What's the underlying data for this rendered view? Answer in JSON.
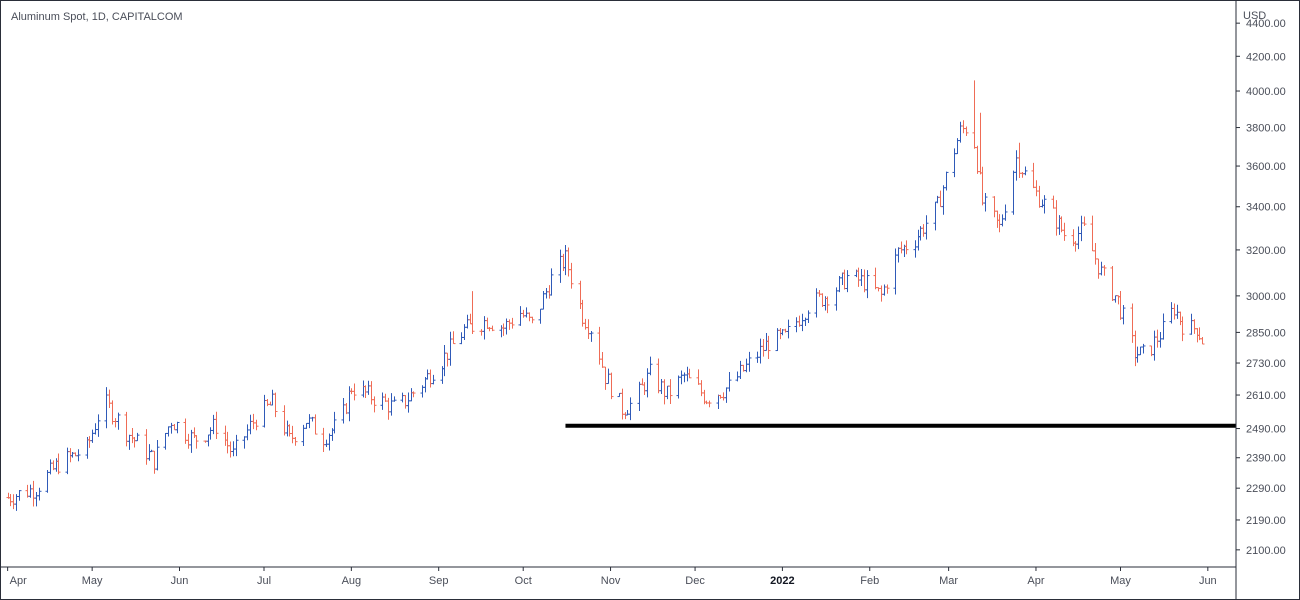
{
  "title": "Aluminum Spot, 1D, CAPITALCOM",
  "currency": "USD",
  "colors": {
    "up": "#2f5ab8",
    "down": "#ef6c56",
    "axis": "#2a2e39",
    "support_line": "#000000",
    "text": "#4a4e59"
  },
  "chart_data": {
    "type": "ohlc",
    "title": "Aluminum Spot, 1D, CAPITALCOM",
    "y_scale": "log",
    "ylim": [
      2050,
      4520
    ],
    "y_ticks": [
      "4400.00",
      "4200.00",
      "4000.00",
      "3800.00",
      "3600.00",
      "3400.00",
      "3200.00",
      "3000.00",
      "2850.00",
      "2730.00",
      "2610.00",
      "2490.00",
      "2390.00",
      "2290.00",
      "2190.00",
      "2100.00"
    ],
    "x_ticks": [
      {
        "label": "Apr",
        "day": 0,
        "bold": false
      },
      {
        "label": "May",
        "day": 30,
        "bold": false
      },
      {
        "label": "Jun",
        "day": 61,
        "bold": false
      },
      {
        "label": "Jul",
        "day": 91,
        "bold": false
      },
      {
        "label": "Aug",
        "day": 122,
        "bold": false
      },
      {
        "label": "Sep",
        "day": 153,
        "bold": false
      },
      {
        "label": "Oct",
        "day": 183,
        "bold": false
      },
      {
        "label": "Nov",
        "day": 214,
        "bold": false
      },
      {
        "label": "Dec",
        "day": 244,
        "bold": false
      },
      {
        "label": "2022",
        "day": 275,
        "bold": true
      },
      {
        "label": "Feb",
        "day": 306,
        "bold": false
      },
      {
        "label": "Mar",
        "day": 334,
        "bold": false
      },
      {
        "label": "Apr",
        "day": 365,
        "bold": false
      },
      {
        "label": "May",
        "day": 395,
        "bold": false
      },
      {
        "label": "Jun",
        "day": 426,
        "bold": false
      }
    ],
    "xlim_days": [
      -2,
      436
    ],
    "support_level": {
      "price": 2500,
      "from_day": 198,
      "to_day": 436
    },
    "anchors": [
      {
        "day": 0,
        "price": 2260
      },
      {
        "day": 10,
        "price": 2290
      },
      {
        "day": 18,
        "price": 2370
      },
      {
        "day": 28,
        "price": 2420
      },
      {
        "day": 34,
        "price": 2590
      },
      {
        "day": 42,
        "price": 2480
      },
      {
        "day": 52,
        "price": 2380
      },
      {
        "day": 58,
        "price": 2520
      },
      {
        "day": 66,
        "price": 2450
      },
      {
        "day": 74,
        "price": 2500
      },
      {
        "day": 80,
        "price": 2400
      },
      {
        "day": 88,
        "price": 2530
      },
      {
        "day": 94,
        "price": 2580
      },
      {
        "day": 100,
        "price": 2450
      },
      {
        "day": 106,
        "price": 2520
      },
      {
        "day": 112,
        "price": 2460
      },
      {
        "day": 118,
        "price": 2510
      },
      {
        "day": 122,
        "price": 2640
      },
      {
        "day": 130,
        "price": 2600
      },
      {
        "day": 138,
        "price": 2560
      },
      {
        "day": 146,
        "price": 2640
      },
      {
        "day": 154,
        "price": 2740
      },
      {
        "day": 162,
        "price": 2860
      },
      {
        "day": 170,
        "price": 2900
      },
      {
        "day": 176,
        "price": 2870
      },
      {
        "day": 182,
        "price": 2930
      },
      {
        "day": 186,
        "price": 2880
      },
      {
        "day": 194,
        "price": 3100
      },
      {
        "day": 198,
        "price": 3160
      },
      {
        "day": 204,
        "price": 2920
      },
      {
        "day": 208,
        "price": 2850
      },
      {
        "day": 212,
        "price": 2680
      },
      {
        "day": 218,
        "price": 2560
      },
      {
        "day": 222,
        "price": 2580
      },
      {
        "day": 228,
        "price": 2690
      },
      {
        "day": 234,
        "price": 2610
      },
      {
        "day": 240,
        "price": 2680
      },
      {
        "day": 248,
        "price": 2600
      },
      {
        "day": 256,
        "price": 2640
      },
      {
        "day": 264,
        "price": 2740
      },
      {
        "day": 270,
        "price": 2810
      },
      {
        "day": 276,
        "price": 2830
      },
      {
        "day": 284,
        "price": 2960
      },
      {
        "day": 292,
        "price": 3010
      },
      {
        "day": 298,
        "price": 3080
      },
      {
        "day": 304,
        "price": 3060
      },
      {
        "day": 310,
        "price": 3000
      },
      {
        "day": 316,
        "price": 3190
      },
      {
        "day": 322,
        "price": 3250
      },
      {
        "day": 330,
        "price": 3400
      },
      {
        "day": 338,
        "price": 3780
      },
      {
        "day": 342,
        "price": 3820
      },
      {
        "day": 346,
        "price": 3420
      },
      {
        "day": 352,
        "price": 3300
      },
      {
        "day": 358,
        "price": 3640
      },
      {
        "day": 364,
        "price": 3480
      },
      {
        "day": 370,
        "price": 3380
      },
      {
        "day": 376,
        "price": 3250
      },
      {
        "day": 382,
        "price": 3290
      },
      {
        "day": 388,
        "price": 3100
      },
      {
        "day": 394,
        "price": 2980
      },
      {
        "day": 400,
        "price": 2770
      },
      {
        "day": 404,
        "price": 2760
      },
      {
        "day": 410,
        "price": 2860
      },
      {
        "day": 414,
        "price": 2950
      },
      {
        "day": 418,
        "price": 2860
      },
      {
        "day": 422,
        "price": 2870
      },
      {
        "day": 424,
        "price": 2820
      }
    ],
    "spikes": [
      {
        "day": 166,
        "high": 3020
      },
      {
        "day": 342,
        "high": 4060
      },
      {
        "day": 345,
        "high": 3880
      },
      {
        "day": 359,
        "high": 3720
      }
    ]
  }
}
